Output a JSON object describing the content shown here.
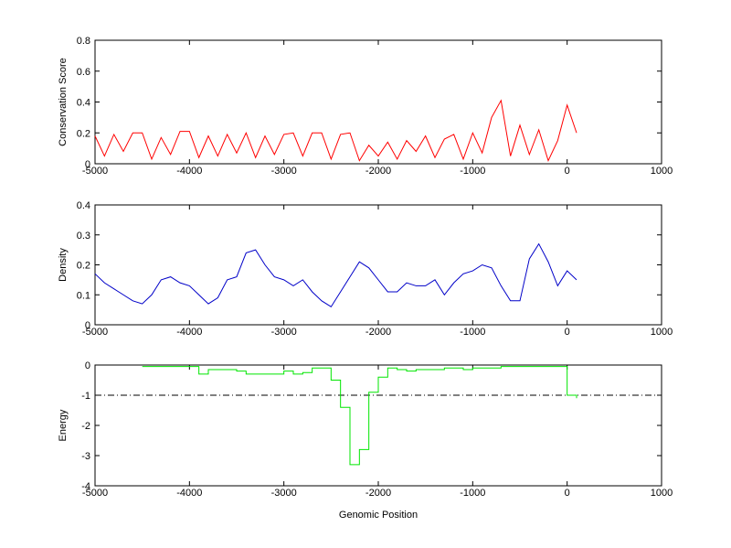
{
  "chart_data": [
    {
      "type": "line",
      "ylabel": "Conservation Score",
      "color": "#ff0000",
      "xlim": [
        -5000,
        1000
      ],
      "ylim": [
        0,
        0.8
      ],
      "xticks": [
        -5000,
        -4000,
        -3000,
        -2000,
        -1000,
        0,
        1000
      ],
      "yticks": [
        0,
        0.2,
        0.4,
        0.6,
        0.8
      ],
      "x": [
        -5000,
        -4900,
        -4800,
        -4700,
        -4600,
        -4500,
        -4400,
        -4300,
        -4200,
        -4100,
        -4000,
        -3900,
        -3800,
        -3700,
        -3600,
        -3500,
        -3400,
        -3300,
        -3200,
        -3100,
        -3000,
        -2900,
        -2800,
        -2700,
        -2600,
        -2500,
        -2400,
        -2300,
        -2200,
        -2100,
        -2000,
        -1900,
        -1800,
        -1700,
        -1600,
        -1500,
        -1400,
        -1300,
        -1200,
        -1100,
        -1000,
        -900,
        -800,
        -700,
        -600,
        -500,
        -400,
        -300,
        -200,
        -100,
        0,
        100
      ],
      "values": [
        0.18,
        0.05,
        0.19,
        0.08,
        0.2,
        0.2,
        0.03,
        0.17,
        0.06,
        0.21,
        0.21,
        0.04,
        0.18,
        0.05,
        0.19,
        0.07,
        0.2,
        0.04,
        0.18,
        0.06,
        0.19,
        0.2,
        0.05,
        0.2,
        0.2,
        0.03,
        0.19,
        0.2,
        0.02,
        0.12,
        0.05,
        0.14,
        0.03,
        0.15,
        0.08,
        0.18,
        0.04,
        0.16,
        0.19,
        0.03,
        0.2,
        0.07,
        0.3,
        0.41,
        0.05,
        0.25,
        0.06,
        0.22,
        0.02,
        0.15,
        0.38,
        0.2
      ]
    },
    {
      "type": "line",
      "ylabel": "Density",
      "color": "#0000c8",
      "xlim": [
        -5000,
        1000
      ],
      "ylim": [
        0,
        0.4
      ],
      "xticks": [
        -5000,
        -4000,
        -3000,
        -2000,
        -1000,
        0,
        1000
      ],
      "yticks": [
        0,
        0.1,
        0.2,
        0.3,
        0.4
      ],
      "x": [
        -5000,
        -4900,
        -4800,
        -4700,
        -4600,
        -4500,
        -4400,
        -4300,
        -4200,
        -4100,
        -4000,
        -3900,
        -3800,
        -3700,
        -3600,
        -3500,
        -3400,
        -3300,
        -3200,
        -3100,
        -3000,
        -2900,
        -2800,
        -2700,
        -2600,
        -2500,
        -2400,
        -2300,
        -2200,
        -2100,
        -2000,
        -1900,
        -1800,
        -1700,
        -1600,
        -1500,
        -1400,
        -1300,
        -1200,
        -1100,
        -1000,
        -900,
        -800,
        -700,
        -600,
        -500,
        -400,
        -300,
        -200,
        -100,
        0,
        100
      ],
      "values": [
        0.17,
        0.14,
        0.12,
        0.1,
        0.08,
        0.07,
        0.1,
        0.15,
        0.16,
        0.14,
        0.13,
        0.1,
        0.07,
        0.09,
        0.15,
        0.16,
        0.24,
        0.25,
        0.2,
        0.16,
        0.15,
        0.13,
        0.15,
        0.11,
        0.08,
        0.06,
        0.11,
        0.16,
        0.21,
        0.19,
        0.15,
        0.11,
        0.11,
        0.14,
        0.13,
        0.13,
        0.15,
        0.1,
        0.14,
        0.17,
        0.18,
        0.2,
        0.19,
        0.13,
        0.08,
        0.08,
        0.22,
        0.27,
        0.21,
        0.13,
        0.18,
        0.15
      ]
    },
    {
      "type": "step",
      "ylabel": "Energy",
      "xlabel": "Genomic Position",
      "color": "#00e600",
      "xlim": [
        -5000,
        1000
      ],
      "ylim": [
        -4,
        0
      ],
      "xticks": [
        -5000,
        -4000,
        -3000,
        -2000,
        -1000,
        0,
        1000
      ],
      "yticks": [
        -4,
        -3,
        -2,
        -1,
        0
      ],
      "hline": -1,
      "x": [
        -4500,
        -4400,
        -4300,
        -4200,
        -4100,
        -4000,
        -3900,
        -3800,
        -3700,
        -3600,
        -3500,
        -3400,
        -3300,
        -3200,
        -3100,
        -3000,
        -2900,
        -2800,
        -2700,
        -2600,
        -2500,
        -2400,
        -2300,
        -2200,
        -2100,
        -2000,
        -1900,
        -1800,
        -1700,
        -1600,
        -1500,
        -1400,
        -1300,
        -1200,
        -1100,
        -1000,
        -900,
        -800,
        -700,
        -600,
        -500,
        -400,
        -300,
        -200,
        -100,
        0,
        100
      ],
      "values": [
        -0.05,
        -0.05,
        -0.05,
        -0.05,
        -0.05,
        -0.05,
        -0.3,
        -0.15,
        -0.15,
        -0.15,
        -0.2,
        -0.3,
        -0.3,
        -0.3,
        -0.3,
        -0.2,
        -0.3,
        -0.25,
        -0.1,
        -0.1,
        -0.5,
        -1.4,
        -3.3,
        -2.8,
        -0.9,
        -0.4,
        -0.1,
        -0.15,
        -0.2,
        -0.15,
        -0.15,
        -0.15,
        -0.1,
        -0.1,
        -0.15,
        -0.1,
        -0.1,
        -0.1,
        -0.05,
        -0.05,
        -0.05,
        -0.05,
        -0.05,
        -0.05,
        -0.05,
        -1.0,
        -1.1
      ]
    }
  ]
}
